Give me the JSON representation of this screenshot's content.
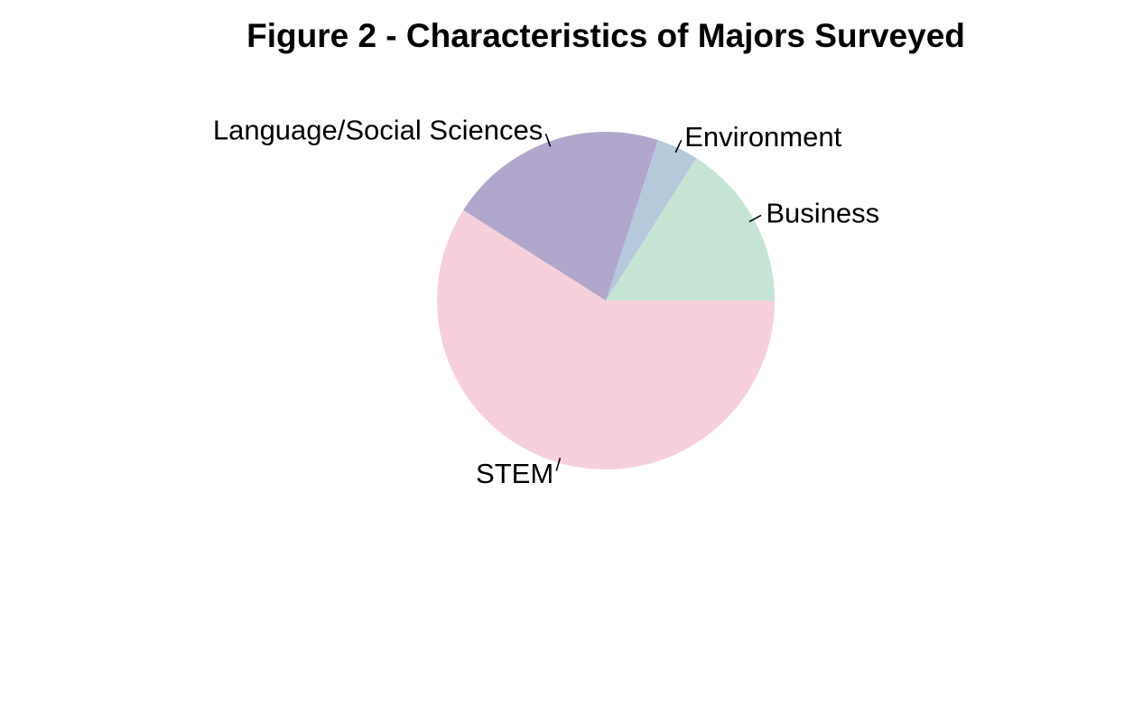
{
  "chart_data": {
    "type": "pie",
    "title": "Figure 2 - Characteristics of Majors Surveyed",
    "slices": [
      {
        "label": "Business",
        "value": 16,
        "color": "#c5e5d5"
      },
      {
        "label": "Environment",
        "value": 4,
        "color": "#b5c9dc"
      },
      {
        "label": "Language/Social Sciences",
        "value": 21,
        "color": "#b1a6cc"
      },
      {
        "label": "STEM",
        "value": 59,
        "color": "#f7d0dc"
      }
    ],
    "start_angle_deg": 0,
    "direction": "counterclockwise",
    "legend": "none"
  }
}
